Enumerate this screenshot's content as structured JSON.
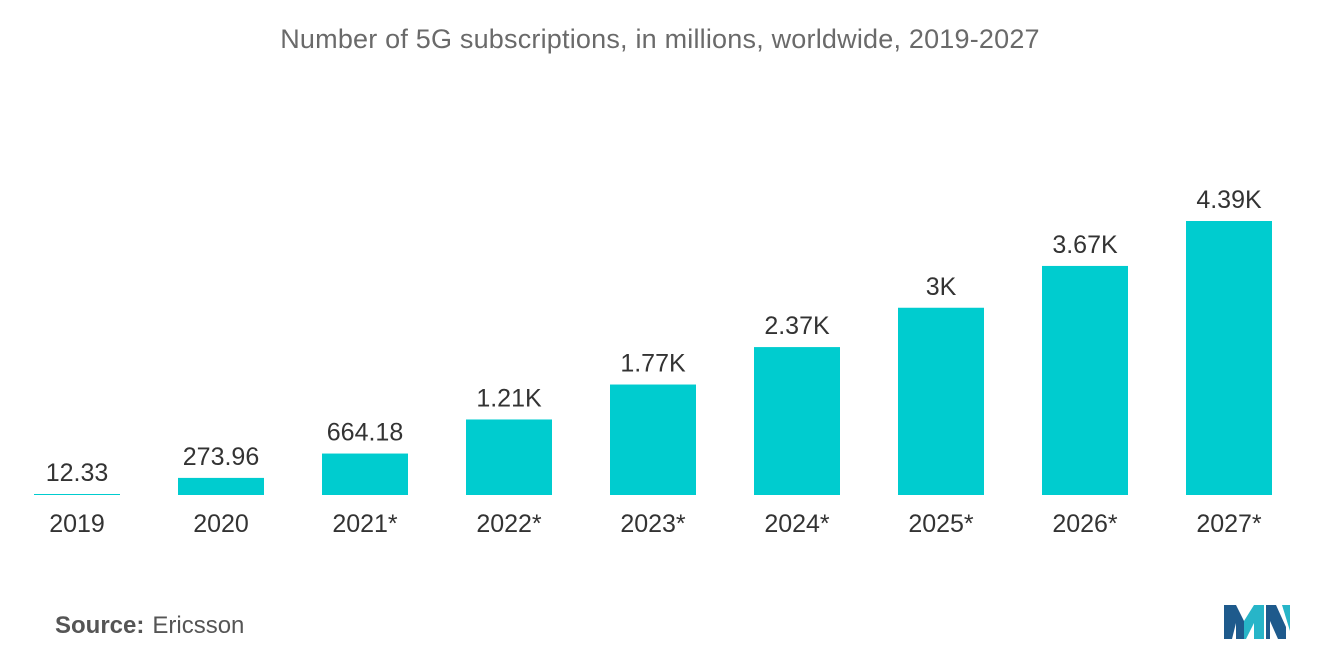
{
  "chart_data": {
    "type": "bar",
    "title": "Number of 5G subscriptions, in millions, worldwide, 2019-2027",
    "categories": [
      "2019",
      "2020",
      "2021*",
      "2022*",
      "2023*",
      "2024*",
      "2025*",
      "2026*",
      "2027*"
    ],
    "values": [
      12.33,
      273.96,
      664.18,
      1210,
      1770,
      2370,
      3000,
      3670,
      4390
    ],
    "value_labels": [
      "12.33",
      "273.96",
      "664.18",
      "1.21K",
      "1.77K",
      "2.37K",
      "3K",
      "3.67K",
      "4.39K"
    ],
    "ylim": [
      0,
      4390
    ],
    "grid": false,
    "bar_color": "#00cccf"
  },
  "source": {
    "label": "Source:",
    "value": "Ericsson"
  },
  "logo": {
    "icon": "mordor-intelligence-logo",
    "colors": [
      "#1e5a8c",
      "#27b5c8"
    ]
  }
}
